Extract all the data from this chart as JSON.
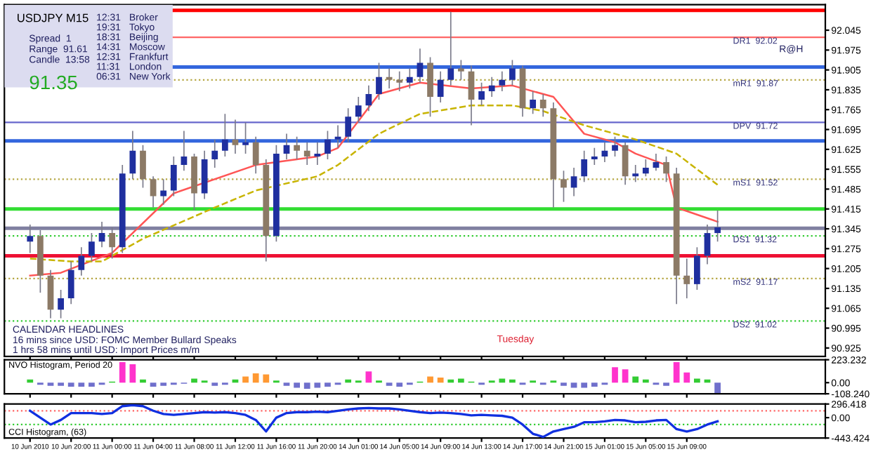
{
  "chart_data": [
    {
      "type": "candlestick",
      "title": "USDJPY M15",
      "categories": [
        null,
        null,
        null,
        null,
        null,
        null,
        null,
        null,
        null,
        null,
        null,
        null,
        null,
        null,
        null,
        null,
        null,
        null,
        null,
        null,
        null,
        null,
        null,
        null,
        null,
        null,
        null,
        null,
        null,
        null,
        null,
        null,
        null,
        null,
        null,
        null,
        null,
        null,
        null,
        null,
        null,
        null,
        null,
        null,
        null,
        null,
        null,
        null,
        null,
        null,
        null,
        null,
        null,
        null,
        null,
        null,
        null,
        null,
        null,
        null,
        null,
        null,
        null,
        null,
        null,
        null,
        null,
        null,
        null,
        null,
        null,
        null,
        null,
        null,
        null,
        null,
        null,
        null,
        null,
        null
      ],
      "ohlc": [
        null,
        null,
        [
          91.3,
          91.36,
          91.26,
          91.32
        ],
        [
          91.32,
          91.34,
          91.12,
          91.18
        ],
        [
          91.18,
          91.2,
          91.03,
          91.06
        ],
        [
          91.06,
          91.13,
          91.03,
          91.1
        ],
        [
          91.1,
          91.23,
          91.08,
          91.2
        ],
        [
          91.2,
          91.28,
          91.18,
          91.25
        ],
        [
          91.25,
          91.33,
          91.23,
          91.3
        ],
        [
          91.3,
          91.37,
          91.28,
          91.33
        ],
        [
          91.33,
          91.35,
          91.24,
          91.28
        ],
        [
          91.28,
          91.57,
          91.26,
          91.54
        ],
        [
          91.54,
          91.69,
          91.52,
          91.62
        ],
        [
          91.62,
          91.64,
          91.49,
          91.52
        ],
        [
          91.52,
          91.53,
          91.42,
          91.46
        ],
        [
          91.46,
          91.52,
          91.43,
          91.48
        ],
        [
          91.48,
          91.6,
          91.46,
          91.57
        ],
        [
          91.57,
          91.69,
          91.55,
          91.6
        ],
        [
          91.6,
          91.61,
          91.41,
          91.47
        ],
        [
          91.47,
          91.62,
          91.45,
          91.59
        ],
        [
          91.59,
          91.66,
          91.56,
          91.62
        ],
        [
          91.62,
          91.75,
          91.6,
          91.66
        ],
        [
          91.66,
          91.73,
          91.61,
          91.64
        ],
        [
          91.64,
          91.72,
          91.61,
          91.65
        ],
        [
          91.65,
          91.67,
          91.54,
          91.57
        ],
        [
          91.57,
          91.59,
          91.23,
          91.32
        ],
        [
          91.32,
          91.64,
          91.3,
          91.61
        ],
        [
          91.61,
          91.68,
          91.59,
          91.64
        ],
        [
          91.64,
          91.67,
          91.59,
          91.62
        ],
        [
          91.62,
          91.65,
          91.57,
          91.6
        ],
        [
          91.6,
          91.65,
          91.57,
          91.61
        ],
        [
          91.61,
          91.69,
          91.59,
          91.66
        ],
        [
          91.66,
          91.71,
          91.63,
          91.67
        ],
        [
          91.67,
          91.77,
          91.65,
          91.74
        ],
        [
          91.74,
          91.81,
          91.72,
          91.78
        ],
        [
          91.78,
          91.85,
          91.76,
          91.82
        ],
        [
          91.82,
          91.93,
          91.8,
          91.88
        ],
        [
          91.88,
          91.91,
          91.84,
          91.87
        ],
        [
          91.87,
          91.9,
          91.83,
          91.86
        ],
        [
          91.86,
          91.91,
          91.84,
          91.88
        ],
        [
          91.88,
          91.98,
          91.86,
          91.93
        ],
        [
          91.93,
          91.95,
          91.74,
          91.81
        ],
        [
          91.81,
          91.9,
          91.79,
          91.87
        ],
        [
          91.87,
          92.11,
          91.85,
          91.91
        ],
        [
          91.91,
          91.94,
          91.87,
          91.9
        ],
        [
          91.9,
          91.92,
          91.71,
          91.8
        ],
        [
          91.8,
          91.86,
          91.78,
          91.83
        ],
        [
          91.83,
          91.88,
          91.81,
          91.85
        ],
        [
          91.85,
          91.9,
          91.83,
          91.87
        ],
        [
          91.87,
          91.94,
          91.85,
          91.91
        ],
        [
          91.91,
          91.92,
          91.74,
          91.77
        ],
        [
          91.77,
          91.83,
          91.75,
          91.8
        ],
        [
          91.8,
          91.82,
          91.74,
          91.77
        ],
        [
          91.77,
          91.79,
          91.42,
          91.52
        ],
        [
          91.52,
          91.55,
          91.44,
          91.49
        ],
        [
          91.49,
          91.56,
          91.46,
          91.53
        ],
        [
          91.53,
          91.62,
          91.51,
          91.59
        ],
        [
          91.59,
          91.63,
          91.57,
          91.6
        ],
        [
          91.6,
          91.65,
          91.58,
          91.62
        ],
        [
          91.62,
          91.67,
          91.6,
          91.64
        ],
        [
          91.64,
          91.65,
          91.5,
          91.53
        ],
        [
          91.53,
          91.57,
          91.51,
          91.54
        ],
        [
          91.54,
          91.59,
          91.53,
          91.56
        ],
        [
          91.56,
          91.61,
          91.55,
          91.58
        ],
        [
          91.58,
          91.6,
          91.51,
          91.54
        ],
        [
          91.54,
          91.56,
          91.08,
          91.18
        ],
        [
          91.18,
          91.24,
          91.1,
          91.15
        ],
        [
          91.15,
          91.28,
          91.13,
          91.25
        ],
        [
          91.25,
          91.36,
          91.22,
          91.33
        ],
        [
          91.33,
          91.41,
          91.3,
          91.35
        ],
        null,
        null,
        null,
        null,
        null,
        null,
        null,
        null,
        null,
        null
      ],
      "series": [
        {
          "type": "line",
          "color": "#ff5555",
          "line_style": "solid",
          "values": [
            null,
            null,
            91.18,
            null,
            null,
            91.19,
            null,
            null,
            null,
            null,
            91.26,
            null,
            null,
            null,
            null,
            null,
            91.47,
            null,
            null,
            null,
            null,
            null,
            null,
            null,
            91.57,
            null,
            null,
            null,
            null,
            null,
            91.6,
            null,
            91.63,
            null,
            null,
            null,
            91.82,
            null,
            null,
            null,
            91.86,
            null,
            null,
            null,
            null,
            91.84,
            null,
            null,
            null,
            91.85,
            null,
            null,
            null,
            91.81,
            null,
            null,
            91.68,
            null,
            null,
            91.65,
            null,
            91.61,
            null,
            null,
            91.57,
            91.42,
            null,
            null,
            null,
            91.37,
            null,
            null,
            null,
            null,
            null,
            null,
            null,
            null,
            null,
            null
          ]
        },
        {
          "type": "line",
          "color": "#c8b400",
          "line_style": "dashed",
          "values": [
            null,
            null,
            91.24,
            null,
            null,
            null,
            91.23,
            null,
            null,
            91.23,
            null,
            null,
            null,
            91.31,
            null,
            null,
            null,
            null,
            null,
            null,
            91.42,
            null,
            null,
            null,
            91.48,
            null,
            null,
            null,
            null,
            null,
            91.53,
            null,
            91.57,
            null,
            null,
            null,
            91.68,
            null,
            null,
            null,
            91.75,
            null,
            null,
            null,
            null,
            91.78,
            null,
            null,
            null,
            91.78,
            null,
            null,
            91.76,
            null,
            null,
            null,
            91.71,
            null,
            null,
            91.68,
            null,
            91.66,
            null,
            null,
            null,
            91.61,
            null,
            null,
            null,
            91.5,
            null,
            null,
            null,
            null,
            null,
            null,
            null,
            null,
            null,
            null
          ]
        }
      ],
      "ylim": [
        90.895,
        92.135
      ],
      "yticks": [
        90.925,
        90.995,
        91.065,
        91.135,
        91.205,
        91.275,
        91.345,
        91.415,
        91.485,
        91.555,
        91.625,
        91.695,
        91.765,
        91.835,
        91.905,
        91.975,
        92.045
      ],
      "tick_labels": "y",
      "ref_lines": [
        {
          "axis": "y",
          "value": 92.115,
          "color": "#ff0000",
          "line_style": "solid"
        },
        {
          "axis": "y",
          "value": 92.02,
          "label": "DR1  92.02",
          "color": "#ff6666",
          "line_style": "solid"
        },
        {
          "axis": "y",
          "value": 91.915,
          "color": "#3366dd",
          "line_style": "solid"
        },
        {
          "axis": "y",
          "value": 91.87,
          "label": "mR1  91.87",
          "color": "#b5a642",
          "line_style": "dotted"
        },
        {
          "axis": "y",
          "value": 91.72,
          "label": "DPV  91.72",
          "color": "#6666cc",
          "line_style": "solid"
        },
        {
          "axis": "y",
          "value": 91.655,
          "color": "#3366dd",
          "line_style": "solid"
        },
        {
          "axis": "y",
          "value": 91.52,
          "label": "mS1  91.52",
          "color": "#b5a642",
          "line_style": "dotted"
        },
        {
          "axis": "y",
          "value": 91.415,
          "color": "#33dd33",
          "line_style": "solid"
        },
        {
          "axis": "y",
          "value": 91.347,
          "color": "#8080a0",
          "line_style": "solid"
        },
        {
          "axis": "y",
          "value": 91.32,
          "label": "DS1  91.32",
          "color": "#33cc33",
          "line_style": "dotted"
        },
        {
          "axis": "y",
          "value": 91.25,
          "color": "#ee1133",
          "line_style": "solid"
        },
        {
          "axis": "y",
          "value": 91.17,
          "label": "mS2  91.17",
          "color": "#b5a642",
          "line_style": "dotted"
        },
        {
          "axis": "y",
          "value": 91.02,
          "label": "DS2  91.02",
          "color": "#33cc33",
          "line_style": "dotted"
        }
      ],
      "annotations": [
        "Spread  1",
        "Range  91.61",
        "Candle  13:58",
        "91.35",
        "12:31",
        "Broker",
        "19:31",
        "Tokyo",
        "18:31",
        "Beijing",
        "14:31",
        "Moscow",
        "12:31",
        "Frankfurt",
        "11:31",
        "London",
        "06:31",
        "New York",
        "CALENDAR HEADLINES",
        "16 mins since USD: FOMC Member Bullard Speaks",
        "1 hrs 58 mins until USD: Import Prices m/m",
        "Tuesday",
        "R@H"
      ]
    },
    {
      "type": "bar",
      "title": "NVO Histogram, Period 20",
      "categories": [
        null,
        null,
        null,
        null,
        null,
        null,
        null,
        null,
        null,
        null,
        null,
        null,
        null,
        null,
        null,
        null,
        null,
        null,
        null,
        null,
        null,
        null,
        null,
        null,
        null,
        null,
        null,
        null,
        null,
        null,
        null,
        null,
        null,
        null,
        null,
        null,
        null,
        null,
        null,
        null,
        null,
        null,
        null,
        null,
        null,
        null,
        null,
        null,
        null,
        null,
        null,
        null,
        null,
        null,
        null,
        null,
        null,
        null,
        null,
        null,
        null,
        null,
        null,
        null,
        null,
        null,
        null,
        null,
        null,
        null,
        null,
        null,
        null,
        null,
        null,
        null,
        null,
        null,
        null,
        null
      ],
      "values": [
        null,
        null,
        30,
        -20,
        -30,
        -30,
        -40,
        -40,
        -40,
        -20,
        10,
        200,
        180,
        30,
        -40,
        -30,
        -20,
        -10,
        40,
        20,
        -30,
        -20,
        30,
        60,
        90,
        80,
        20,
        -30,
        -50,
        -60,
        -50,
        -40,
        -20,
        30,
        20,
        110,
        20,
        -30,
        -40,
        -20,
        10,
        60,
        50,
        30,
        40,
        10,
        -20,
        20,
        40,
        30,
        -20,
        20,
        -20,
        20,
        -30,
        -50,
        -50,
        -40,
        -20,
        150,
        130,
        60,
        30,
        -20,
        -30,
        200,
        100,
        40,
        30,
        -100,
        null,
        null,
        null,
        null,
        null,
        null,
        null,
        null,
        null,
        null
      ],
      "colors": [
        null,
        null,
        "#33cc33",
        "#7070cc",
        "#7070cc",
        "#7070cc",
        "#7070cc",
        "#7070cc",
        "#7070cc",
        "#7070cc",
        "#33cc33",
        "#ff33cc",
        "#ff33cc",
        "#33cc33",
        "#7070cc",
        "#7070cc",
        "#7070cc",
        "#7070cc",
        "#33cc33",
        "#33cc33",
        "#7070cc",
        "#7070cc",
        "#33cc33",
        "#ff9933",
        "#ff9933",
        "#ff9933",
        "#33cc33",
        "#7070cc",
        "#7070cc",
        "#7070cc",
        "#7070cc",
        "#7070cc",
        "#7070cc",
        "#33cc33",
        "#33cc33",
        "#ff33cc",
        "#33cc33",
        "#7070cc",
        "#7070cc",
        "#7070cc",
        "#33cc33",
        "#ff9933",
        "#ff9933",
        "#33cc33",
        "#33cc33",
        "#33cc33",
        "#7070cc",
        "#33cc33",
        "#33cc33",
        "#33cc33",
        "#7070cc",
        "#33cc33",
        "#7070cc",
        "#33cc33",
        "#7070cc",
        "#7070cc",
        "#7070cc",
        "#7070cc",
        "#7070cc",
        "#ff33cc",
        "#ff33cc",
        "#33cc33",
        "#33cc33",
        "#7070cc",
        "#7070cc",
        "#ff33cc",
        "#ff33cc",
        "#33cc33",
        "#33cc33",
        "#7070cc",
        null,
        null,
        null,
        null,
        null,
        null,
        null,
        null,
        null,
        null
      ],
      "ylim": [
        -108.24,
        223.232
      ],
      "yticks": [
        {
          "value": -108.24,
          "label": "-108.240"
        },
        {
          "value": 0,
          "label": "0.00"
        },
        223.232
      ],
      "tick_labels": "y"
    },
    {
      "type": "line",
      "title": "CCI Histogram, (63)",
      "color": "#1030e0",
      "categories": [
        null,
        null,
        "10 Jun 2010",
        null,
        null,
        null,
        "10 Jun 20:00",
        null,
        null,
        null,
        "11 Jun 00:00",
        null,
        null,
        null,
        "11 Jun 04:00",
        null,
        null,
        null,
        "11 Jun 08:00",
        null,
        null,
        null,
        "11 Jun 12:00",
        null,
        null,
        null,
        "11 Jun 16:00",
        null,
        null,
        null,
        "11 Jun 20:00",
        null,
        null,
        null,
        "14 Jun 01:00",
        null,
        null,
        null,
        "14 Jun 05:00",
        null,
        null,
        null,
        "14 Jun 09:00",
        null,
        null,
        null,
        "14 Jun 13:00",
        null,
        null,
        null,
        "14 Jun 17:00",
        null,
        null,
        null,
        "14 Jun 21:00",
        null,
        null,
        null,
        "15 Jun 01:00",
        null,
        null,
        null,
        "15 Jun 05:00",
        null,
        null,
        null,
        "15 Jun 09:00",
        null,
        null,
        null,
        null,
        null,
        null,
        null,
        null,
        null,
        null,
        null,
        null,
        null
      ],
      "values": [
        null,
        null,
        150,
        0,
        -150,
        -50,
        100,
        100,
        100,
        80,
        100,
        250,
        270,
        250,
        150,
        80,
        60,
        80,
        100,
        120,
        110,
        120,
        100,
        60,
        -50,
        -300,
        0,
        100,
        120,
        120,
        130,
        120,
        150,
        180,
        200,
        210,
        200,
        200,
        180,
        150,
        120,
        100,
        110,
        100,
        80,
        50,
        60,
        50,
        40,
        0,
        -150,
        -350,
        -420,
        -300,
        -250,
        -200,
        -100,
        -100,
        -80,
        -50,
        -60,
        -100,
        -90,
        -60,
        -50,
        -250,
        -300,
        -250,
        -150,
        -80,
        null,
        null,
        null,
        null,
        null,
        null,
        null,
        null,
        null,
        null
      ],
      "ylim": [
        -443.424,
        296.418
      ],
      "yticks": [
        {
          "value": -443.424,
          "label": "-443.424"
        },
        {
          "value": 0,
          "label": "0.00"
        },
        296.418
      ],
      "ref_lines": [
        {
          "axis": "y",
          "value": 150,
          "color": "#ff6666",
          "line_style": "dotted"
        },
        {
          "axis": "y",
          "value": -150,
          "color": "#33cc33",
          "line_style": "dotted"
        }
      ]
    }
  ]
}
